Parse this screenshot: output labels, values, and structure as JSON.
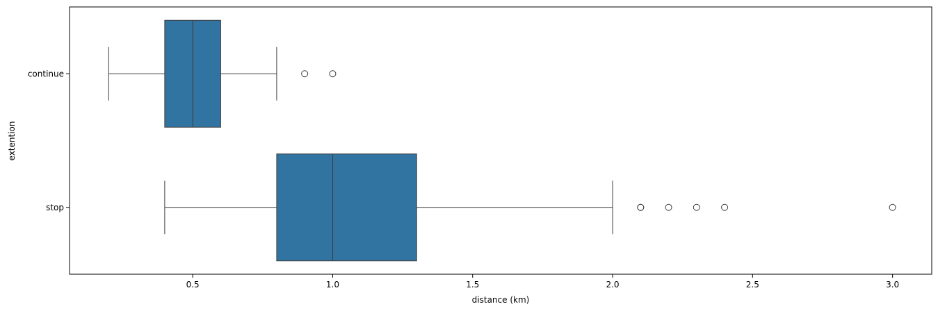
{
  "chart_data": {
    "type": "boxplot",
    "orientation": "horizontal",
    "xlabel": "distance (km)",
    "ylabel": "extention",
    "xlim": [
      0.06,
      3.14
    ],
    "xticks": [
      0.5,
      1.0,
      1.5,
      2.0,
      2.5,
      3.0
    ],
    "xtick_labels": [
      "0.5",
      "1.0",
      "1.5",
      "2.0",
      "2.5",
      "3.0"
    ],
    "categories": [
      "continue",
      "stop"
    ],
    "grid": false,
    "legend": "none",
    "box_color": "#3274a1",
    "line_color": "#3d3d3d",
    "boxes": [
      {
        "category": "continue",
        "whisker_low": 0.2,
        "q1": 0.4,
        "median": 0.5,
        "q3": 0.6,
        "whisker_high": 0.8,
        "outliers": [
          0.9,
          1.0
        ]
      },
      {
        "category": "stop",
        "whisker_low": 0.4,
        "q1": 0.8,
        "median": 1.0,
        "q3": 1.3,
        "whisker_high": 2.0,
        "outliers": [
          2.1,
          2.1,
          2.2,
          2.3,
          2.4,
          3.0
        ]
      }
    ]
  }
}
